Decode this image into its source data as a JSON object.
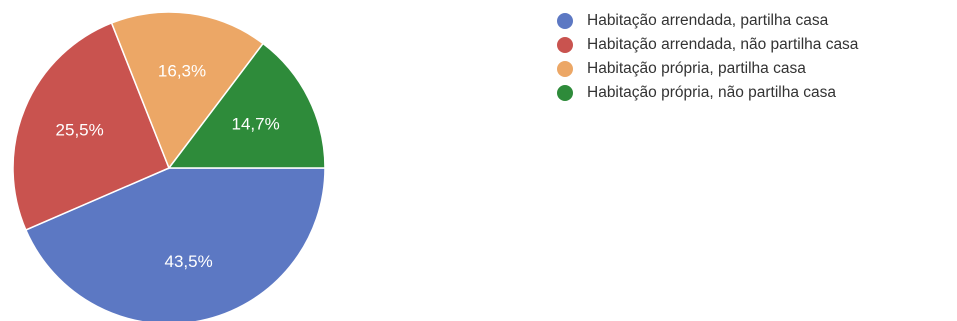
{
  "chart_data": {
    "type": "pie",
    "title": "",
    "slices": [
      {
        "label": "Habitação arrendada, partilha casa",
        "value": 43.5,
        "display": "43,5%",
        "color": "#5c78c3"
      },
      {
        "label": "Habitação arrendada, não partilha casa",
        "value": 25.5,
        "display": "25,5%",
        "color": "#c9534f"
      },
      {
        "label": "Habitação própria, partilha casa",
        "value": 16.3,
        "display": "16,3%",
        "color": "#eca766"
      },
      {
        "label": "Habitação própria, não partilha casa",
        "value": 14.7,
        "display": "14,7%",
        "color": "#2e8b3a"
      }
    ],
    "start_angle_deg": 0,
    "direction": "clockwise",
    "legend_position": "top-right"
  }
}
